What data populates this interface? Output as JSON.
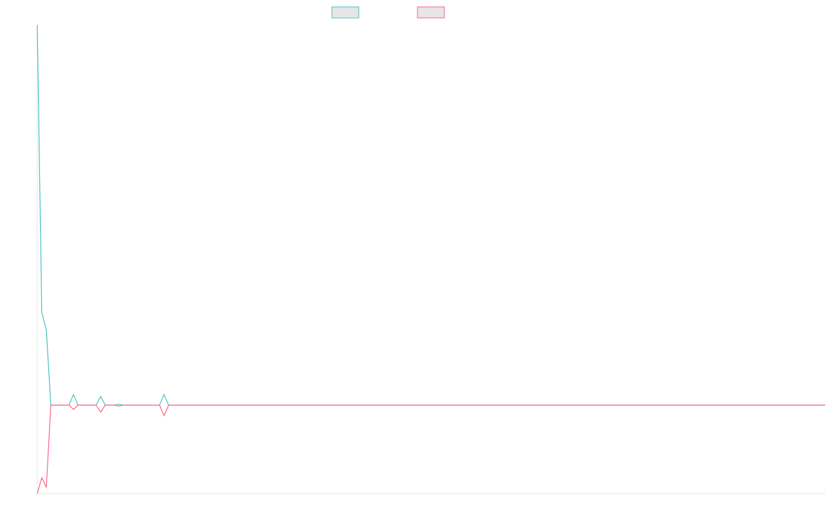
{
  "chart_data": {
    "type": "line",
    "title": "",
    "xlabel": "",
    "ylabel": "",
    "grid": false,
    "legend_position": "top-center",
    "colors": {
      "series_1": "#4bc0c0",
      "series_2": "#ff6384",
      "axis": "#e5e5e5",
      "legend_fill": "#e6e6e6"
    },
    "x": [
      0,
      1,
      2,
      3,
      4,
      5,
      6,
      7,
      8,
      9,
      10,
      11,
      12,
      13,
      14,
      15,
      16,
      17,
      18,
      19,
      20,
      21,
      22,
      23,
      24,
      25,
      26,
      27,
      28,
      29,
      30,
      31,
      32,
      33,
      34,
      35,
      36,
      37,
      38,
      39,
      40,
      41,
      42,
      43,
      44,
      45,
      46,
      47,
      48,
      49,
      50,
      51,
      52,
      53,
      54,
      55,
      56,
      57,
      58,
      59,
      60,
      61,
      62,
      63,
      64,
      65,
      66,
      67,
      68,
      69,
      70,
      71,
      72,
      73,
      74,
      75,
      76,
      77,
      78,
      79,
      80,
      81,
      82,
      83,
      84,
      85,
      86,
      87,
      88,
      89,
      90,
      91,
      92,
      93,
      94,
      95,
      96,
      97,
      98,
      99,
      100,
      101,
      102,
      103,
      104,
      105,
      106,
      107,
      108,
      109,
      110,
      111,
      112,
      113,
      114,
      115,
      116,
      117,
      118,
      119,
      120,
      121,
      122,
      123,
      124,
      125,
      126,
      127,
      128,
      129,
      130,
      131,
      132,
      133,
      134,
      135,
      136,
      137,
      138,
      139,
      140,
      141,
      142,
      143,
      144,
      145,
      146,
      147,
      148,
      149,
      150,
      151,
      152,
      153,
      154,
      155,
      156,
      157,
      158,
      159,
      160,
      161,
      162,
      163,
      164,
      165,
      166,
      167,
      168,
      169,
      170,
      171,
      172,
      173,
      174
    ],
    "ylim": [
      -10,
      43
    ],
    "series": [
      {
        "values": [
          43,
          10.5,
          8.5,
          0,
          0,
          0,
          0,
          0,
          1.2,
          0,
          0,
          0,
          0,
          0,
          1,
          0,
          0,
          0,
          0.1,
          0,
          0,
          0,
          0,
          0,
          0,
          0,
          0,
          0,
          1.2,
          0,
          0,
          0,
          0,
          0,
          0,
          0,
          0,
          0,
          0,
          0,
          0,
          0,
          0,
          0,
          0,
          0,
          0,
          0,
          0,
          0,
          0,
          0,
          0,
          0,
          0,
          0,
          0,
          0,
          0,
          0,
          0,
          0,
          0,
          0,
          0,
          0,
          0,
          0,
          0,
          0,
          0,
          0,
          0,
          0,
          0,
          0,
          0,
          0,
          0,
          0,
          0,
          0,
          0,
          0,
          0,
          0,
          0,
          0,
          0,
          0,
          0,
          0,
          0,
          0,
          0,
          0,
          0,
          0,
          0,
          0,
          0,
          0,
          0,
          0,
          0,
          0,
          0,
          0,
          0,
          0,
          0,
          0,
          0,
          0,
          0,
          0,
          0,
          0,
          0,
          0,
          0,
          0,
          0,
          0,
          0,
          0,
          0,
          0,
          0,
          0,
          0,
          0,
          0,
          0,
          0,
          0,
          0,
          0,
          0,
          0,
          0,
          0,
          0,
          0,
          0,
          0,
          0,
          0,
          0,
          0,
          0,
          0,
          0,
          0,
          0,
          0,
          0,
          0,
          0,
          0,
          0,
          0,
          0,
          0,
          0,
          0,
          0,
          0,
          0,
          0,
          0,
          0,
          0,
          0,
          0
        ]
      },
      {
        "values": [
          -10,
          -8.2,
          -9.3,
          0,
          0,
          0,
          0,
          0,
          -0.5,
          0,
          0,
          0,
          0,
          0,
          -0.8,
          0,
          0,
          0,
          -0.1,
          0,
          0,
          0,
          0,
          0,
          0,
          0,
          0,
          0,
          -1.2,
          0,
          0,
          0,
          0,
          0,
          0,
          0,
          0,
          0,
          0,
          0,
          0,
          0,
          0,
          0,
          0,
          0,
          0,
          0,
          0,
          0,
          0,
          0,
          0,
          0,
          0,
          0,
          0,
          0,
          0,
          0,
          0,
          0,
          0,
          0,
          0,
          0,
          0,
          0,
          0,
          0,
          0,
          0,
          0,
          0,
          0,
          0,
          0,
          0,
          0,
          0,
          0,
          0,
          0,
          0,
          0,
          0,
          0,
          0,
          0,
          0,
          0,
          0,
          0,
          0,
          0,
          0,
          0,
          0,
          0,
          0,
          0,
          0,
          0,
          0,
          0,
          0,
          0,
          0,
          0,
          0,
          0,
          0,
          0,
          0,
          0,
          0,
          0,
          0,
          0,
          0,
          0,
          0,
          0,
          0,
          0,
          0,
          0,
          0,
          0,
          0,
          0,
          0,
          0,
          0,
          0,
          0,
          0,
          0,
          0,
          0,
          0,
          0,
          0,
          0,
          0,
          0,
          0,
          0,
          0,
          0,
          0,
          0,
          0,
          0,
          0,
          0,
          0,
          0,
          0,
          0,
          0,
          0,
          0,
          0,
          0,
          0,
          0,
          0,
          0,
          0,
          0,
          0,
          0,
          0,
          0
        ]
      }
    ]
  }
}
